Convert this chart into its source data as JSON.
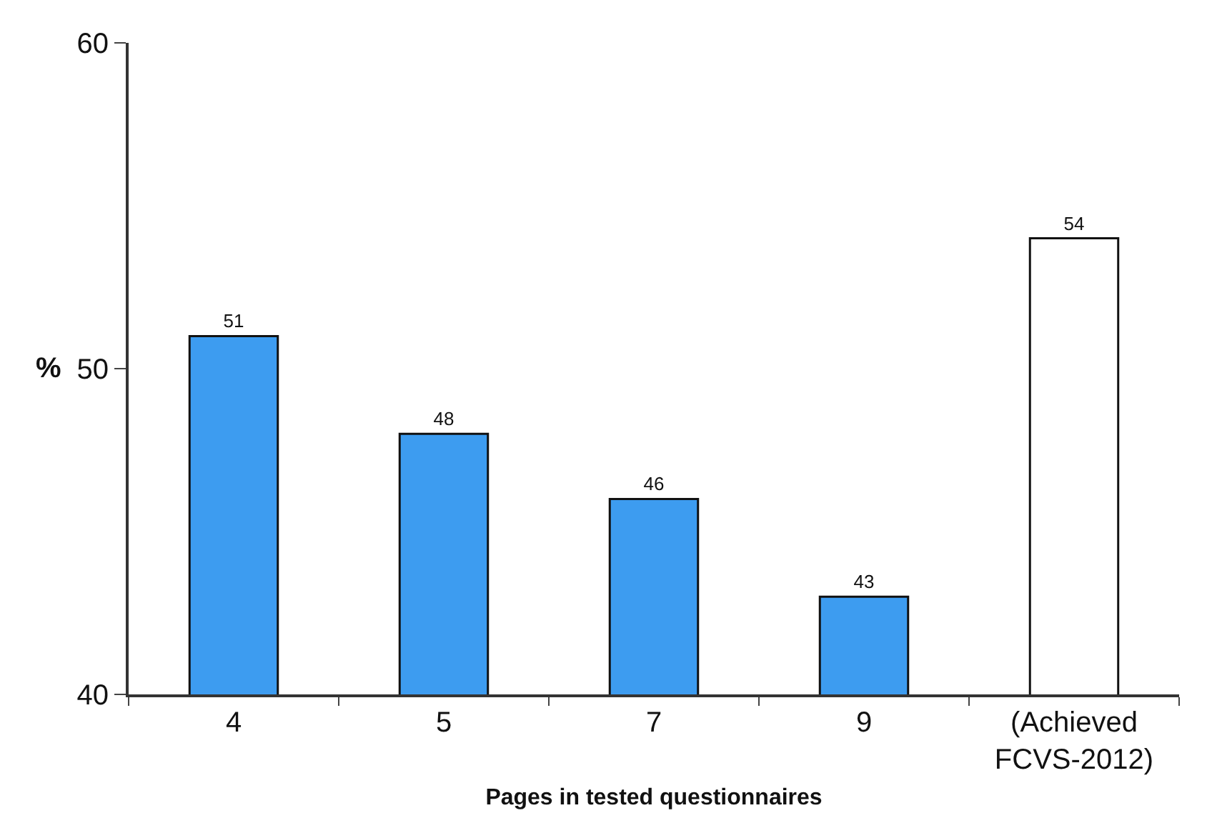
{
  "chart_data": {
    "type": "bar",
    "xlabel": "Pages in tested questionnaires",
    "ylabel": "%",
    "categories": [
      "4",
      "5",
      "7",
      "9",
      "(Achieved\nFCVS-2012)"
    ],
    "series": [
      {
        "colors": [
          "#3d9cf0",
          "#3d9cf0",
          "#3d9cf0",
          "#3d9cf0",
          "#ffffff"
        ],
        "values": [
          51,
          48,
          46,
          43,
          54
        ]
      }
    ],
    "ylim": [
      40,
      60
    ],
    "yticks": [
      40,
      50,
      60
    ],
    "data_labels": true
  }
}
